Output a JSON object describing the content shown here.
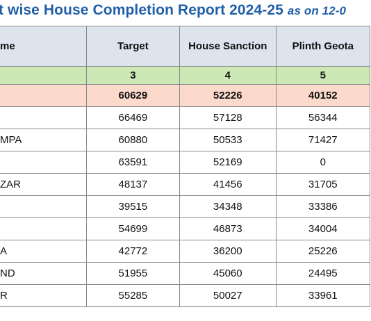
{
  "title": {
    "main": "t wise House Completion Report 2024-25",
    "sub": "as on 12-0"
  },
  "table": {
    "headers": [
      "me",
      "Target",
      "House Sanction",
      "Plinth Geota"
    ],
    "column_numbers": [
      "",
      "3",
      "4",
      "5"
    ],
    "total_row": [
      "",
      "60629",
      "52226",
      "40152"
    ],
    "rows": [
      [
        "",
        "66469",
        "57128",
        "56344"
      ],
      [
        "MPA",
        "60880",
        "50533",
        "71427"
      ],
      [
        "",
        "63591",
        "52169",
        "0"
      ],
      [
        "ZAR",
        "48137",
        "41456",
        "31705"
      ],
      [
        "",
        "39515",
        "34348",
        "33386"
      ],
      [
        "",
        "54699",
        "46873",
        "34004"
      ],
      [
        "A",
        "42772",
        "36200",
        "25226"
      ],
      [
        "ND",
        "51955",
        "45060",
        "24495"
      ],
      [
        "R",
        "55285",
        "50027",
        "33961"
      ]
    ]
  },
  "colors": {
    "title": "#1f5fa8",
    "header_bg": "#dde4ee",
    "column_number_bg": "#cce8b5",
    "total_bg": "#fbd9cb"
  }
}
